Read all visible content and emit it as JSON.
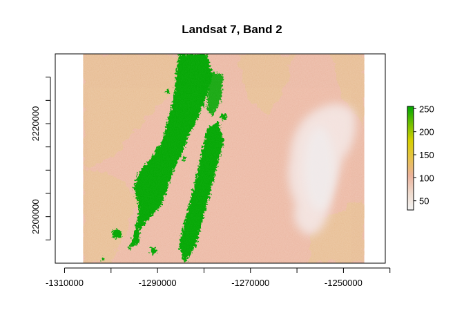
{
  "title": "Landsat 7, Band 2",
  "x_ticks": [
    {
      "value": -1310000,
      "label": "-1310000"
    },
    {
      "value": -1300000,
      "label": ""
    },
    {
      "value": -1290000,
      "label": "-1290000"
    },
    {
      "value": -1280000,
      "label": ""
    },
    {
      "value": -1270000,
      "label": "-1270000"
    },
    {
      "value": -1260000,
      "label": ""
    },
    {
      "value": -1250000,
      "label": "-1250000"
    },
    {
      "value": -1240000,
      "label": ""
    }
  ],
  "y_ticks": [
    {
      "value": 2195000,
      "label": ""
    },
    {
      "value": 2200000,
      "label": "2200000"
    },
    {
      "value": 2205000,
      "label": ""
    },
    {
      "value": 2210000,
      "label": ""
    },
    {
      "value": 2215000,
      "label": ""
    },
    {
      "value": 2220000,
      "label": "2220000"
    },
    {
      "value": 2225000,
      "label": ""
    },
    {
      "value": 2230000,
      "label": ""
    }
  ],
  "legend": {
    "ticks": [
      {
        "value": 50,
        "label": "50"
      },
      {
        "value": 100,
        "label": "100"
      },
      {
        "value": 150,
        "label": "150"
      },
      {
        "value": 200,
        "label": "200"
      },
      {
        "value": 250,
        "label": "250"
      }
    ],
    "range": [
      30,
      255
    ],
    "colors": [
      "#f2f2f2",
      "#eed9cc",
      "#ebb29b",
      "#e6c24a",
      "#d6cf00",
      "#6fbf00",
      "#00a600"
    ]
  },
  "chart_data": {
    "type": "heatmap",
    "title": "Landsat 7, Band 2",
    "xlim": [
      -1312000,
      -1241000
    ],
    "ylim": [
      2190000,
      2235000
    ],
    "raster_extent": {
      "x": [
        -1306000,
        -1245500
      ],
      "y": [
        2190000,
        2235000
      ]
    },
    "value_range": [
      30,
      255
    ],
    "grid": false,
    "legend_position": "right",
    "colors": {
      "background": "#ebb59f",
      "tan_regions": "#e6bd8a",
      "high_values": "#00a600",
      "low_values": "#f0ebeb"
    }
  }
}
